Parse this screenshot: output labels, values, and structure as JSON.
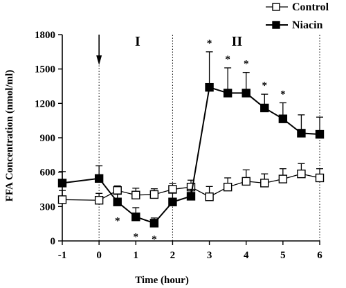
{
  "chart_data": {
    "type": "line",
    "xlabel": "Time (hour)",
    "ylabel": "FFA Concentration (nmol/ml)",
    "xlim": [
      -1,
      6
    ],
    "ylim": [
      0,
      1800
    ],
    "xticks": [
      "-1",
      "0",
      "1",
      "2",
      "3",
      "4",
      "5",
      "6"
    ],
    "yticks": [
      "0",
      "300",
      "600",
      "900",
      "1200",
      "1500",
      "1800"
    ],
    "x_tick_values": [
      -1,
      0,
      1,
      2,
      3,
      4,
      5,
      6
    ],
    "y_tick_values": [
      0,
      300,
      600,
      900,
      1200,
      1500,
      1800
    ],
    "legend_position": "top-right",
    "grid": false,
    "phase_labels": [
      {
        "text": "I",
        "x": 1.05
      },
      {
        "text": "II",
        "x": 3.75
      }
    ],
    "phase_boundaries": [
      0,
      2,
      6
    ],
    "arrow_at_x": 0,
    "significance_marker": "*",
    "series": [
      {
        "name": "Control",
        "marker": "open-square",
        "x": [
          -1,
          0,
          0.5,
          1,
          1.5,
          2,
          2.5,
          3,
          3.5,
          4,
          4.5,
          5,
          5.5,
          6
        ],
        "values": [
          360,
          355,
          440,
          400,
          405,
          450,
          470,
          385,
          470,
          520,
          505,
          540,
          585,
          550
        ],
        "error": [
          80,
          60,
          40,
          60,
          50,
          50,
          60,
          90,
          80,
          100,
          80,
          90,
          90,
          80
        ]
      },
      {
        "name": "Niacin",
        "marker": "filled-square",
        "x": [
          -1,
          0,
          0.5,
          1,
          1.5,
          2,
          2.5,
          3,
          3.5,
          4,
          4.5,
          5,
          5.5,
          6
        ],
        "values": [
          505,
          545,
          340,
          210,
          155,
          340,
          390,
          1340,
          1290,
          1290,
          1160,
          1065,
          940,
          930
        ],
        "error": [
          100,
          110,
          70,
          80,
          45,
          80,
          60,
          310,
          220,
          180,
          120,
          140,
          160,
          150
        ],
        "significant": [
          false,
          false,
          true,
          true,
          true,
          false,
          false,
          true,
          true,
          true,
          true,
          true,
          false,
          false
        ]
      }
    ]
  }
}
